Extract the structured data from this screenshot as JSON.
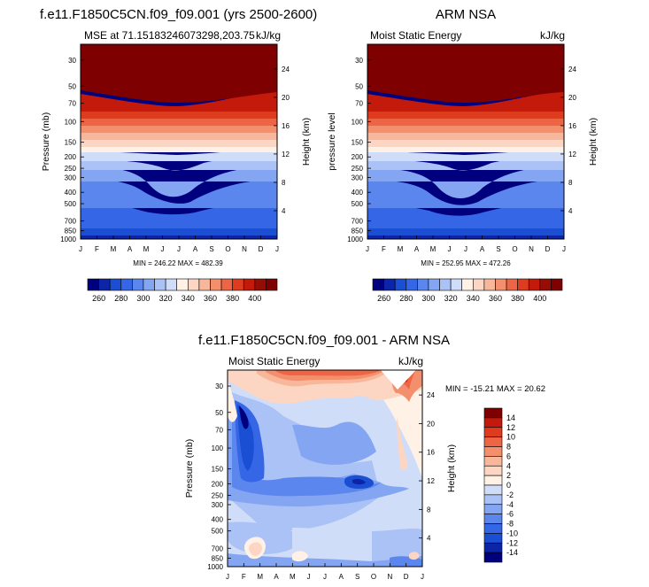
{
  "chart_data": [
    {
      "type": "contour",
      "title": "f.e11.F1850C5CN.f09_f09.001 (yrs 2500-2600)",
      "left_label": "MSE at 71.15183246073298,203.75",
      "right_label": "kJ/kg",
      "ylabel": "Pressure (mb)",
      "ylabel_right": "Height (km)",
      "x_tick_labels": [
        "J",
        "F",
        "M",
        "A",
        "M",
        "J",
        "J",
        "A",
        "S",
        "O",
        "N",
        "D",
        "J"
      ],
      "pressure_ticks": [
        30,
        50,
        70,
        100,
        150,
        200,
        250,
        300,
        400,
        500,
        700,
        850,
        1000
      ],
      "height_ticks": [
        24,
        20,
        16,
        12,
        8,
        4
      ],
      "stats": "MIN = 246.22 MAX = 482.39",
      "min": 246.22,
      "max": 482.39
    },
    {
      "type": "contour",
      "title": "ARM NSA",
      "left_label": "Moist Static Energy",
      "right_label": "kJ/kg",
      "ylabel": "pressure level",
      "ylabel_right": "Height (km)",
      "x_tick_labels": [
        "J",
        "F",
        "M",
        "A",
        "M",
        "J",
        "J",
        "A",
        "S",
        "O",
        "N",
        "D",
        "J"
      ],
      "pressure_ticks": [
        30,
        50,
        70,
        100,
        150,
        200,
        250,
        300,
        400,
        500,
        700,
        850,
        1000
      ],
      "height_ticks": [
        24,
        20,
        16,
        12,
        8,
        4
      ],
      "stats": "MIN = 252.95 MAX = 472.26",
      "min": 252.95,
      "max": 472.26
    },
    {
      "type": "contour",
      "title": "f.e11.F1850C5CN.f09_f09.001 - ARM NSA",
      "left_label": "Moist Static Energy",
      "right_label": "kJ/kg",
      "ylabel": "Pressure (mb)",
      "ylabel_right": "Height (km)",
      "x_tick_labels": [
        "J",
        "F",
        "M",
        "A",
        "M",
        "J",
        "J",
        "A",
        "S",
        "O",
        "N",
        "D",
        "J"
      ],
      "pressure_ticks": [
        30,
        50,
        70,
        100,
        150,
        200,
        250,
        300,
        400,
        500,
        700,
        850,
        1000
      ],
      "height_ticks": [
        24,
        20,
        16,
        12,
        8,
        4
      ],
      "stats": "MIN = -15.21 MAX =  20.62",
      "min": -15.21,
      "max": 20.62
    }
  ],
  "colorbars": [
    {
      "labels": [
        "260",
        "280",
        "300",
        "320",
        "340",
        "360",
        "380",
        "400"
      ],
      "colors": [
        "#00007f",
        "#0b24a8",
        "#1a4fd4",
        "#3566e6",
        "#5b86ee",
        "#84a6f2",
        "#aac2f5",
        "#d0ddf8",
        "#fff1e6",
        "#fcd6c3",
        "#f8b69a",
        "#f48f6e",
        "#ee6545",
        "#df3b1f",
        "#c31a0b",
        "#960d06",
        "#7f0000"
      ]
    },
    {
      "labels": [
        "260",
        "280",
        "300",
        "320",
        "340",
        "360",
        "380",
        "400"
      ]
    },
    {
      "labels": [
        "14",
        "12",
        "10",
        "8",
        "6",
        "4",
        "2",
        "0",
        "-2",
        "-4",
        "-6",
        "-8",
        "-10",
        "-12",
        "-14"
      ],
      "colors": [
        "#7f0000",
        "#c31a0b",
        "#df3b1f",
        "#ee6545",
        "#f48f6e",
        "#f8b69a",
        "#fcd6c3",
        "#fff1e6",
        "#d0ddf8",
        "#aac2f5",
        "#84a6f2",
        "#5b86ee",
        "#3566e6",
        "#1a4fd4",
        "#0b24a8",
        "#00007f"
      ]
    }
  ]
}
